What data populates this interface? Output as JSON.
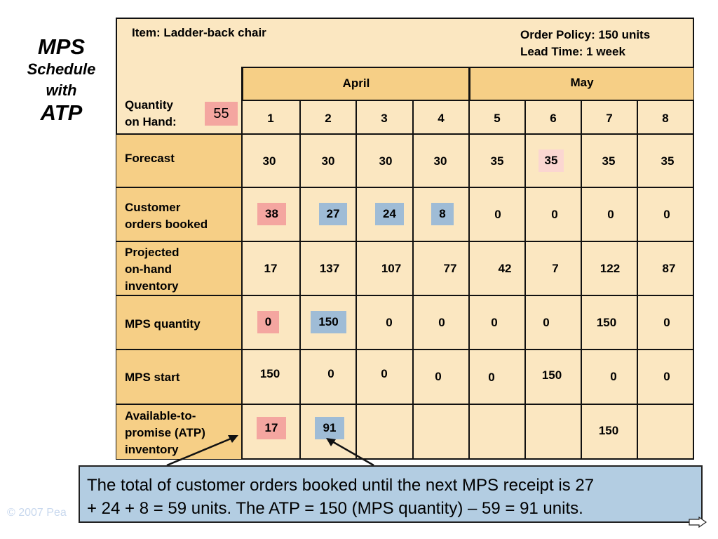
{
  "side_title": {
    "line1": "MPS",
    "line2": "Schedule",
    "line3": "with",
    "line4": "ATP"
  },
  "header": {
    "item": "Item: Ladder-back chair",
    "order_policy": "Order Policy: 150 units",
    "lead_time": "Lead Time: 1 week"
  },
  "months": [
    {
      "label": "April"
    },
    {
      "label": "May"
    }
  ],
  "quantity_on_hand": {
    "label_line1": "Quantity",
    "label_line2": "on Hand:",
    "value": "55"
  },
  "weeks": [
    "1",
    "2",
    "3",
    "4",
    "5",
    "6",
    "7",
    "8"
  ],
  "rows": {
    "forecast": {
      "label": "Forecast",
      "values": [
        "30",
        "30",
        "30",
        "30",
        "35",
        "35",
        "35",
        "35"
      ]
    },
    "customer_orders": {
      "label_line1": "Customer",
      "label_line2": "orders booked",
      "values": [
        "38",
        "27",
        "24",
        "8",
        "0",
        "0",
        "0",
        "0"
      ]
    },
    "projected": {
      "label_line1": "Projected",
      "label_line2": "on-hand",
      "label_line3": "inventory",
      "values": [
        "17",
        "137",
        "107",
        "77",
        "42",
        "7",
        "122",
        "87"
      ]
    },
    "mps_quantity": {
      "label": "MPS quantity",
      "values": [
        "0",
        "150",
        "0",
        "0",
        "0",
        "0",
        "150",
        "0"
      ]
    },
    "mps_start": {
      "label": "MPS start",
      "values": [
        "150",
        "0",
        "0",
        "0",
        "0",
        "150",
        "0",
        "0"
      ]
    },
    "atp": {
      "label_line1": "Available-to-",
      "label_line2": "promise (ATP)",
      "label_line3": "inventory",
      "values": [
        "17",
        "91",
        "",
        "",
        "",
        "",
        "150",
        ""
      ]
    }
  },
  "callout": {
    "line1": "The total of customer orders booked until the next MPS receipt is 27",
    "line2": "+ 24 + 8 = 59 units.  The ATP = 150 (MPS quantity) – 59 = 91 units."
  },
  "copyright": "© 2007 Pea",
  "colors": {
    "frame_bg": "#fbe7c1",
    "label_bg": "#f6cf86",
    "pink": "#f4a6a0",
    "blue": "#9fbcd6",
    "callout_bg": "#b3cde2"
  }
}
